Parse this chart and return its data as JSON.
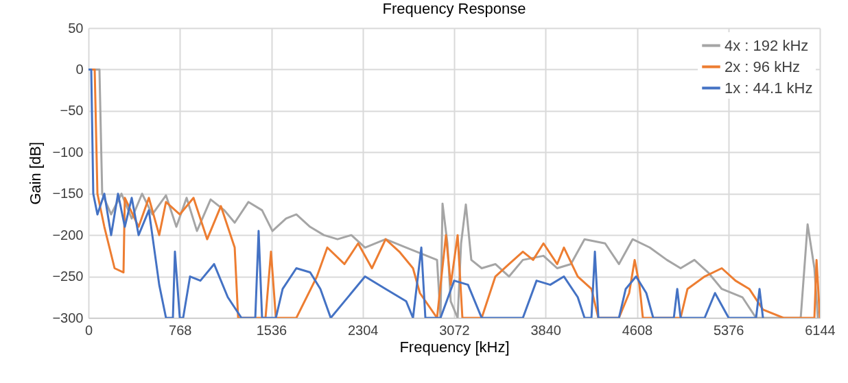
{
  "chart_data": {
    "type": "line",
    "title": "Frequency Response",
    "xlabel": "Frequency [kHz]",
    "ylabel": "Gain [dB]",
    "xlim": [
      0,
      6144
    ],
    "xticks": [
      0,
      768,
      1536,
      2304,
      3072,
      3840,
      4608,
      5376,
      6144
    ],
    "ylim": [
      -300,
      50
    ],
    "yticks": [
      -300,
      -250,
      -200,
      -150,
      -100,
      -50,
      0,
      50
    ],
    "grid": true,
    "legend": "top right",
    "line_style": "solid",
    "marker": "none",
    "series": [
      {
        "name": "4x : 192 kHz",
        "color": "#a5a5a5",
        "x": [
          0,
          92,
          115,
          190,
          277,
          363,
          450,
          536,
          651,
          738,
          824,
          911,
          1026,
          1141,
          1228,
          1343,
          1458,
          1545,
          1660,
          1746,
          1861,
          1977,
          2092,
          2208,
          2323,
          2496,
          2669,
          2842,
          2928,
          2957,
          2974,
          3015,
          3043,
          3101,
          3130,
          3170,
          3216,
          3303,
          3418,
          3533,
          3649,
          3822,
          3937,
          4052,
          4167,
          4340,
          4456,
          4571,
          4715,
          4859,
          4974,
          5090,
          5205,
          5320,
          5493,
          5608,
          5983,
          6041,
          6098,
          6127
        ],
        "values": [
          0,
          0,
          -150,
          -175,
          -150,
          -180,
          -150,
          -175,
          -152,
          -190,
          -155,
          -195,
          -157,
          -170,
          -185,
          -160,
          -170,
          -195,
          -180,
          -175,
          -190,
          -200,
          -205,
          -200,
          -215,
          -205,
          -215,
          -225,
          -230,
          -300,
          -162,
          -210,
          -280,
          -300,
          -210,
          -163,
          -230,
          -240,
          -235,
          -250,
          -230,
          -225,
          -240,
          -235,
          -205,
          -210,
          -235,
          -205,
          -215,
          -230,
          -240,
          -230,
          -245,
          -265,
          -275,
          -300,
          -300,
          -187,
          -240,
          -300
        ]
      },
      {
        "name": "2x : 96 kHz",
        "color": "#ed7d31",
        "x": [
          0,
          52,
          75,
          133,
          219,
          294,
          305,
          421,
          507,
          594,
          651,
          767,
          882,
          997,
          1112,
          1228,
          1257,
          1487,
          1533,
          1574,
          1746,
          1919,
          2006,
          2150,
          2265,
          2381,
          2496,
          2611,
          2726,
          2784,
          2928,
          3003,
          3043,
          3101,
          3141,
          3303,
          3418,
          3533,
          3649,
          3735,
          3822,
          3937,
          3994,
          4110,
          4225,
          4283,
          4456,
          4542,
          4588,
          4628,
          4657,
          4974,
          5032,
          5176,
          5320,
          5435,
          5551,
          5666,
          5839,
          6098,
          6116,
          6144
        ],
        "values": [
          0,
          0,
          -150,
          -190,
          -240,
          -245,
          -155,
          -190,
          -155,
          -200,
          -160,
          -175,
          -155,
          -205,
          -165,
          -215,
          -300,
          -300,
          -220,
          -300,
          -300,
          -250,
          -215,
          -235,
          -210,
          -240,
          -205,
          -220,
          -240,
          -270,
          -300,
          -200,
          -260,
          -200,
          -300,
          -300,
          -250,
          -235,
          -220,
          -230,
          -210,
          -235,
          -215,
          -250,
          -265,
          -300,
          -300,
          -270,
          -230,
          -260,
          -300,
          -300,
          -265,
          -250,
          -240,
          -255,
          -265,
          -290,
          -300,
          -300,
          -230,
          -300
        ]
      },
      {
        "name": "1x : 44.1 kHz",
        "color": "#4472c4",
        "x": [
          0,
          23,
          40,
          75,
          133,
          190,
          248,
          305,
          363,
          421,
          507,
          594,
          651,
          709,
          726,
          767,
          795,
          853,
          940,
          1055,
          1170,
          1285,
          1401,
          1429,
          1458,
          1574,
          1631,
          1746,
          1862,
          1948,
          2035,
          2323,
          2496,
          2669,
          2726,
          2796,
          2830,
          2957,
          3072,
          3188,
          3303,
          3649,
          3764,
          3879,
          3994,
          4110,
          4167,
          4225,
          4254,
          4283,
          4456,
          4513,
          4600,
          4686,
          4744,
          4917,
          4946,
          4974,
          5176,
          5263,
          5378,
          5608,
          5637,
          5666
        ],
        "values": [
          0,
          0,
          -150,
          -175,
          -150,
          -200,
          -150,
          -190,
          -155,
          -200,
          -170,
          -260,
          -300,
          -300,
          -220,
          -300,
          -300,
          -250,
          -255,
          -235,
          -275,
          -300,
          -300,
          -195,
          -300,
          -300,
          -265,
          -240,
          -245,
          -265,
          -300,
          -250,
          -265,
          -280,
          -300,
          -215,
          -300,
          -300,
          -255,
          -260,
          -300,
          -300,
          -255,
          -260,
          -250,
          -275,
          -300,
          -300,
          -220,
          -300,
          -300,
          -265,
          -250,
          -270,
          -300,
          -300,
          -265,
          -300,
          -300,
          -270,
          -300,
          -300,
          -265,
          -300
        ]
      }
    ]
  }
}
